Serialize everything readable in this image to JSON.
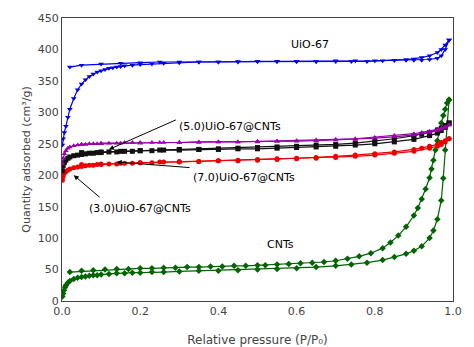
{
  "chart_data": {
    "type": "line",
    "xlabel": "Relative pressure (P/P₀)",
    "ylabel": "Quantity adsorbed (cm³/g)",
    "xlim": [
      0.0,
      1.0
    ],
    "ylim": [
      0,
      450
    ],
    "xticks": [
      {
        "value": 0.0,
        "label": "0.0"
      },
      0.2,
      0.4,
      0.6,
      0.8,
      {
        "value": 1.0,
        "label": "1.0"
      }
    ],
    "yticks": [
      0,
      50,
      100,
      150,
      200,
      250,
      300,
      350,
      400,
      450
    ],
    "grid": false,
    "annotations": [
      {
        "text": "UiO-67",
        "x": 0.58,
        "y": 422
      },
      {
        "text": "(5.0)UiO-67@CNTs",
        "x": 0.295,
        "y": 291
      },
      {
        "text": "(3.0)UiO-67@CNTs",
        "x": 0.065,
        "y": 161
      },
      {
        "text": "(7.0)UiO-67@CNTs",
        "x": 0.33,
        "y": 210
      },
      {
        "text": "CNTs",
        "x": 0.52,
        "y": 104
      }
    ],
    "arrows": [
      {
        "x1": 0.295,
        "y1": 289,
        "x2": 0.12,
        "y2": 241
      },
      {
        "x1": 0.33,
        "y1": 212,
        "x2": 0.14,
        "y2": 221
      },
      {
        "x1": 0.1,
        "y1": 163,
        "x2": 0.03,
        "y2": 200
      }
    ],
    "series": [
      {
        "color": "#006400",
        "marker": "diamond",
        "x": [
          0.99,
          0.985,
          0.98,
          0.975,
          0.97,
          0.965,
          0.96,
          0.955,
          0.95,
          0.945,
          0.94,
          0.93,
          0.92,
          0.91,
          0.9,
          0.88,
          0.86,
          0.84,
          0.82,
          0.79,
          0.76,
          0.73,
          0.7,
          0.67,
          0.64,
          0.61,
          0.58,
          0.55,
          0.52,
          0.5,
          0.47,
          0.44,
          0.41,
          0.38,
          0.35,
          0.32,
          0.29,
          0.26,
          0.23,
          0.2,
          0.17,
          0.14,
          0.11,
          0.08,
          0.05,
          0.02
        ],
        "values": [
          320,
          315,
          305,
          295,
          283,
          270,
          255,
          240,
          224,
          210,
          196,
          178,
          162,
          148,
          136,
          118,
          104,
          93,
          84,
          76,
          71,
          67,
          64,
          62,
          61,
          60,
          59,
          58,
          57,
          57,
          56,
          56,
          55,
          55,
          54,
          54,
          53,
          53,
          52,
          52,
          51,
          51,
          50,
          49,
          48,
          46
        ]
      },
      {
        "color": "#006400",
        "marker": "diamond",
        "x": [
          0.001,
          0.003,
          0.005,
          0.008,
          0.01,
          0.015,
          0.02,
          0.03,
          0.04,
          0.05,
          0.06,
          0.07,
          0.08,
          0.09,
          0.1,
          0.12,
          0.14,
          0.16,
          0.18,
          0.2,
          0.23,
          0.26,
          0.3,
          0.35,
          0.4,
          0.45,
          0.5,
          0.55,
          0.6,
          0.65,
          0.7,
          0.74,
          0.78,
          0.82,
          0.85,
          0.88,
          0.9,
          0.92,
          0.94,
          0.95,
          0.96,
          0.97,
          0.975,
          0.98,
          0.985,
          0.99
        ],
        "values": [
          7,
          12,
          17,
          22,
          25,
          29,
          32,
          35,
          37,
          38,
          39,
          40,
          41,
          41,
          42,
          43,
          44,
          44,
          45,
          45,
          46,
          46,
          47,
          48,
          48,
          49,
          50,
          51,
          52,
          54,
          56,
          58,
          61,
          65,
          70,
          75,
          80,
          87,
          100,
          112,
          130,
          160,
          195,
          240,
          280,
          320
        ]
      },
      {
        "color": "#EE0000",
        "marker": "circle",
        "x": [
          0.99,
          0.98,
          0.97,
          0.96,
          0.94,
          0.92,
          0.9,
          0.85,
          0.8,
          0.75,
          0.7,
          0.65,
          0.6,
          0.55,
          0.5,
          0.45,
          0.4,
          0.35,
          0.3,
          0.25,
          0.2,
          0.15,
          0.1,
          0.05
        ],
        "values": [
          258,
          255,
          252,
          249,
          246,
          243,
          241,
          237,
          234,
          232,
          230,
          228,
          227,
          226,
          225,
          224,
          223,
          222,
          222,
          221,
          220,
          219,
          218,
          217
        ]
      },
      {
        "color": "#EE0000",
        "marker": "circle",
        "x": [
          0.001,
          0.003,
          0.006,
          0.01,
          0.015,
          0.02,
          0.03,
          0.04,
          0.05,
          0.06,
          0.07,
          0.08,
          0.09,
          0.1,
          0.12,
          0.14,
          0.16,
          0.18,
          0.2,
          0.23,
          0.26,
          0.3,
          0.35,
          0.4,
          0.45,
          0.5,
          0.55,
          0.6,
          0.65,
          0.7,
          0.75,
          0.8,
          0.85,
          0.9,
          0.94,
          0.96,
          0.97,
          0.98,
          0.99
        ],
        "values": [
          192,
          198,
          203,
          206,
          208,
          210,
          212,
          213,
          214,
          215,
          216,
          216,
          217,
          217,
          218,
          218,
          219,
          219,
          220,
          220,
          221,
          221,
          222,
          223,
          223,
          224,
          225,
          226,
          227,
          228,
          230,
          232,
          235,
          238,
          243,
          246,
          249,
          253,
          258
        ]
      },
      {
        "color": "#111111",
        "marker": "square",
        "x": [
          0.99,
          0.98,
          0.97,
          0.96,
          0.94,
          0.92,
          0.9,
          0.85,
          0.8,
          0.75,
          0.7,
          0.65,
          0.6,
          0.55,
          0.5,
          0.45,
          0.4,
          0.35,
          0.3,
          0.25,
          0.2,
          0.15,
          0.1,
          0.05
        ],
        "values": [
          283,
          279,
          275,
          272,
          268,
          265,
          263,
          258,
          254,
          251,
          249,
          248,
          246,
          245,
          244,
          243,
          242,
          241,
          241,
          240,
          239,
          238,
          237,
          236
        ]
      },
      {
        "color": "#111111",
        "marker": "square",
        "x": [
          0.001,
          0.003,
          0.006,
          0.01,
          0.015,
          0.02,
          0.03,
          0.04,
          0.05,
          0.06,
          0.07,
          0.08,
          0.09,
          0.1,
          0.12,
          0.14,
          0.16,
          0.18,
          0.2,
          0.23,
          0.26,
          0.3,
          0.35,
          0.4,
          0.45,
          0.5,
          0.55,
          0.6,
          0.65,
          0.7,
          0.75,
          0.8,
          0.85,
          0.9,
          0.94,
          0.96,
          0.97,
          0.98,
          0.99
        ],
        "values": [
          207,
          215,
          220,
          224,
          227,
          229,
          231,
          232,
          233,
          234,
          235,
          235,
          236,
          236,
          237,
          237,
          238,
          238,
          239,
          239,
          240,
          240,
          241,
          241,
          242,
          242,
          243,
          244,
          245,
          246,
          248,
          250,
          253,
          257,
          263,
          267,
          271,
          276,
          283
        ]
      },
      {
        "color": "#9900AA",
        "marker": "triangle-up",
        "x": [
          0.99,
          0.98,
          0.97,
          0.96,
          0.94,
          0.92,
          0.9,
          0.85,
          0.8,
          0.75,
          0.7,
          0.65,
          0.6,
          0.55,
          0.5,
          0.45,
          0.4,
          0.35,
          0.3,
          0.25,
          0.2,
          0.15,
          0.1,
          0.05
        ],
        "values": [
          280,
          277,
          275,
          273,
          270,
          268,
          266,
          263,
          260,
          258,
          257,
          256,
          255,
          254,
          254,
          253,
          253,
          252,
          252,
          252,
          251,
          251,
          250,
          249
        ]
      },
      {
        "color": "#9900AA",
        "marker": "triangle-up",
        "x": [
          0.001,
          0.003,
          0.006,
          0.01,
          0.015,
          0.02,
          0.03,
          0.04,
          0.05,
          0.06,
          0.07,
          0.08,
          0.09,
          0.1,
          0.12,
          0.14,
          0.16,
          0.18,
          0.2,
          0.23,
          0.26,
          0.3,
          0.35,
          0.4,
          0.45,
          0.5,
          0.55,
          0.6,
          0.65,
          0.7,
          0.75,
          0.8,
          0.85,
          0.9,
          0.94,
          0.96,
          0.97,
          0.98,
          0.99
        ],
        "values": [
          218,
          227,
          234,
          239,
          243,
          245,
          247,
          248,
          249,
          249,
          250,
          250,
          250,
          251,
          251,
          251,
          252,
          252,
          252,
          252,
          252,
          252,
          253,
          253,
          253,
          253,
          254,
          254,
          255,
          256,
          257,
          259,
          261,
          264,
          268,
          271,
          273,
          276,
          280
        ]
      },
      {
        "color": "#0000EE",
        "marker": "triangle-down",
        "x": [
          0.99,
          0.98,
          0.97,
          0.96,
          0.94,
          0.92,
          0.9,
          0.88,
          0.85,
          0.82,
          0.78,
          0.74,
          0.7,
          0.65,
          0.6,
          0.55,
          0.5,
          0.45,
          0.4,
          0.35,
          0.3,
          0.25,
          0.2,
          0.15,
          0.1,
          0.05,
          0.02
        ],
        "values": [
          415,
          407,
          400,
          395,
          390,
          387,
          385,
          384,
          383,
          382,
          381,
          381,
          381,
          381,
          381,
          381,
          381,
          380,
          380,
          380,
          380,
          380,
          379,
          378,
          377,
          375,
          372
        ]
      },
      {
        "color": "#0000EE",
        "marker": "triangle-down",
        "x": [
          0.001,
          0.003,
          0.006,
          0.01,
          0.015,
          0.02,
          0.03,
          0.04,
          0.05,
          0.06,
          0.07,
          0.08,
          0.09,
          0.1,
          0.11,
          0.12,
          0.13,
          0.14,
          0.15,
          0.16,
          0.18,
          0.2,
          0.23,
          0.26,
          0.3,
          0.35,
          0.4,
          0.45,
          0.5,
          0.55,
          0.6,
          0.65,
          0.7,
          0.75,
          0.8,
          0.85,
          0.88,
          0.9,
          0.92,
          0.94,
          0.96,
          0.97,
          0.98,
          0.99
        ],
        "values": [
          248,
          258,
          268,
          278,
          292,
          305,
          322,
          336,
          345,
          352,
          357,
          361,
          364,
          366,
          368,
          370,
          371,
          372,
          373,
          374,
          375,
          376,
          377,
          378,
          379,
          380,
          380,
          381,
          381,
          381,
          381,
          381,
          382,
          382,
          382,
          383,
          383,
          383,
          383,
          384,
          386,
          390,
          400,
          415
        ]
      }
    ]
  }
}
